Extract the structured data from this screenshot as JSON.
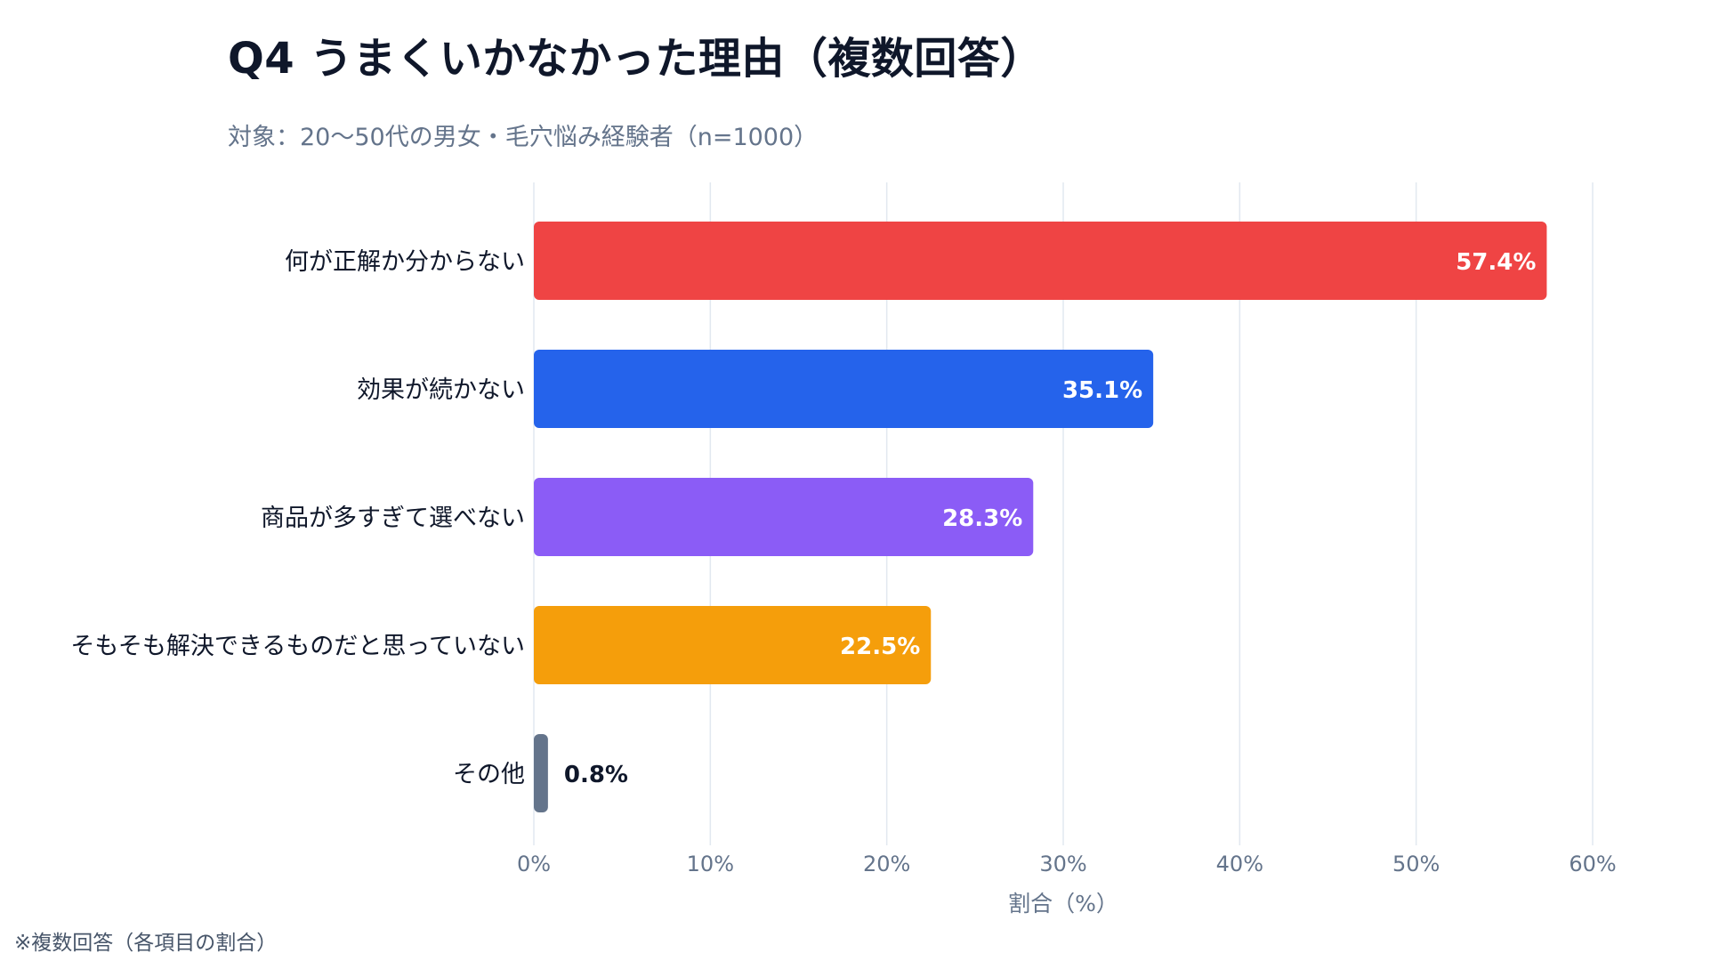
{
  "title": "Q4 うまくいかなかった理由（複数回答）",
  "subtitle": "対象：20〜50代の男女・毛穴悩み経験者（n=1000）",
  "footnote": "※複数回答（各項目の割合）",
  "chart_data": {
    "type": "bar",
    "orientation": "horizontal",
    "title": "Q4 うまくいかなかった理由（複数回答）",
    "subtitle": "対象：20〜50代の男女・毛穴悩み経験者（n=1000）",
    "categories": [
      "何が正解か分からない",
      "効果が続かない",
      "商品が多すぎて選べない",
      "そもそも解決できるものだと思っていない",
      "その他"
    ],
    "values": [
      57.4,
      35.1,
      28.3,
      22.5,
      0.8
    ],
    "value_labels": [
      "57.4%",
      "35.1%",
      "28.3%",
      "22.5%",
      "0.8%"
    ],
    "colors": [
      "#ef4444",
      "#2563eb",
      "#8b5cf6",
      "#f59e0b",
      "#64748b"
    ],
    "xlabel": "割合（%）",
    "ylabel": "",
    "xlim": [
      0,
      60
    ],
    "xticks": [
      0,
      10,
      20,
      30,
      40,
      50,
      60
    ],
    "xtick_labels": [
      "0%",
      "10%",
      "20%",
      "30%",
      "40%",
      "50%",
      "60%"
    ],
    "grid": true,
    "legend": "none"
  }
}
